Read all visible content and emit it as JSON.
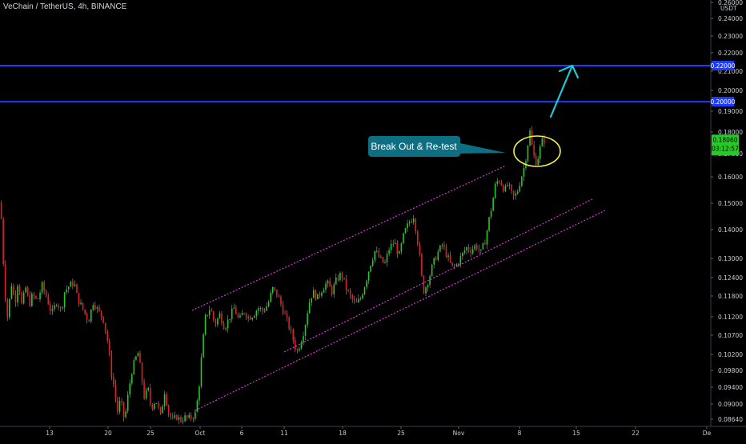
{
  "header": {
    "symbol_title": "VeChain / TetherUS, 4h, BINANCE"
  },
  "colors": {
    "background": "#000000",
    "bull": "#26c926",
    "bear": "#e02020",
    "wick": "#9aa0a8",
    "level_line": "#1e3cff",
    "channel": "#d33ad3",
    "arrow": "#1ec8d6",
    "ellipse": "#f3f04a",
    "callout": "#0f6f82",
    "price_badge": "#26c926"
  },
  "chart_data": {
    "type": "candlestick",
    "symbol": "VeChain / TetherUS",
    "timeframe": "4h",
    "exchange": "BINANCE",
    "quote_unit": "USDT",
    "ylim": [
      0.0845,
      0.262
    ],
    "scale": "log",
    "y_ticks": [
      "0.26000",
      "0.24000",
      "0.23000",
      "0.22000",
      "0.21000",
      "0.20000",
      "0.19000",
      "0.18000",
      "0.17000",
      "0.16000",
      "0.15000",
      "0.14000",
      "0.13000",
      "0.12400",
      "0.11800",
      "0.11200",
      "0.10700",
      "0.10200",
      "0.09800",
      "0.09400",
      "0.09000",
      "0.08640"
    ],
    "x_ticks": [
      "13",
      "20",
      "25",
      "Oct",
      "6",
      "11",
      "18",
      "25",
      "Nov",
      "8",
      "15",
      "22",
      "De"
    ],
    "horizontal_levels": [
      0.2,
      0.22
    ],
    "current_price": "0.18060",
    "countdown": "03:12:57",
    "annotations": [
      {
        "type": "callout",
        "text": "Break Out & Re-test"
      }
    ],
    "price_path": [
      [
        0,
        0.153
      ],
      [
        4,
        0.128
      ],
      [
        8,
        0.112
      ],
      [
        11,
        0.118
      ],
      [
        14,
        0.124
      ],
      [
        18,
        0.117
      ],
      [
        22,
        0.125
      ],
      [
        27,
        0.116
      ],
      [
        31,
        0.123
      ],
      [
        36,
        0.117
      ],
      [
        40,
        0.12
      ],
      [
        46,
        0.118
      ],
      [
        52,
        0.123
      ],
      [
        58,
        0.119
      ],
      [
        64,
        0.114
      ],
      [
        70,
        0.118
      ],
      [
        76,
        0.115
      ],
      [
        80,
        0.121
      ],
      [
        86,
        0.123
      ],
      [
        92,
        0.124
      ],
      [
        96,
        0.119
      ],
      [
        100,
        0.117
      ],
      [
        106,
        0.114
      ],
      [
        110,
        0.112
      ],
      [
        116,
        0.118
      ],
      [
        122,
        0.115
      ],
      [
        128,
        0.113
      ],
      [
        134,
        0.106
      ],
      [
        138,
        0.098
      ],
      [
        142,
        0.094
      ],
      [
        146,
        0.088
      ],
      [
        150,
        0.091
      ],
      [
        155,
        0.086
      ],
      [
        160,
        0.093
      ],
      [
        164,
        0.098
      ],
      [
        168,
        0.101
      ],
      [
        172,
        0.103
      ],
      [
        176,
        0.097
      ],
      [
        180,
        0.091
      ],
      [
        184,
        0.094
      ],
      [
        188,
        0.089
      ],
      [
        194,
        0.091
      ],
      [
        200,
        0.087
      ],
      [
        205,
        0.093
      ],
      [
        210,
        0.088
      ],
      [
        215,
        0.086
      ],
      [
        220,
        0.087
      ],
      [
        225,
        0.0862
      ],
      [
        230,
        0.0868
      ],
      [
        235,
        0.0865
      ],
      [
        240,
        0.087
      ],
      [
        244,
        0.0878
      ],
      [
        248,
        0.094
      ],
      [
        252,
        0.104
      ],
      [
        256,
        0.113
      ],
      [
        262,
        0.116
      ],
      [
        268,
        0.111
      ],
      [
        274,
        0.114
      ],
      [
        280,
        0.11
      ],
      [
        286,
        0.113
      ],
      [
        292,
        0.116
      ],
      [
        298,
        0.112
      ],
      [
        304,
        0.115
      ],
      [
        310,
        0.113
      ],
      [
        316,
        0.114
      ],
      [
        322,
        0.116
      ],
      [
        328,
        0.115
      ],
      [
        334,
        0.117
      ],
      [
        340,
        0.122
      ],
      [
        346,
        0.12
      ],
      [
        352,
        0.116
      ],
      [
        358,
        0.112
      ],
      [
        364,
        0.108
      ],
      [
        370,
        0.103
      ],
      [
        375,
        0.106
      ],
      [
        380,
        0.11
      ],
      [
        385,
        0.117
      ],
      [
        390,
        0.121
      ],
      [
        396,
        0.119
      ],
      [
        402,
        0.122
      ],
      [
        408,
        0.124
      ],
      [
        414,
        0.121
      ],
      [
        420,
        0.125
      ],
      [
        426,
        0.127
      ],
      [
        432,
        0.122
      ],
      [
        438,
        0.119
      ],
      [
        444,
        0.117
      ],
      [
        450,
        0.119
      ],
      [
        456,
        0.124
      ],
      [
        462,
        0.13
      ],
      [
        468,
        0.135
      ],
      [
        474,
        0.132
      ],
      [
        480,
        0.13
      ],
      [
        486,
        0.136
      ],
      [
        492,
        0.138
      ],
      [
        498,
        0.133
      ],
      [
        504,
        0.141
      ],
      [
        510,
        0.145
      ],
      [
        516,
        0.148
      ],
      [
        520,
        0.141
      ],
      [
        524,
        0.132
      ],
      [
        528,
        0.121
      ],
      [
        532,
        0.123
      ],
      [
        536,
        0.126
      ],
      [
        540,
        0.13
      ],
      [
        546,
        0.134
      ],
      [
        552,
        0.137
      ],
      [
        558,
        0.133
      ],
      [
        564,
        0.129
      ],
      [
        570,
        0.13
      ],
      [
        576,
        0.133
      ],
      [
        582,
        0.136
      ],
      [
        588,
        0.135
      ],
      [
        594,
        0.137
      ],
      [
        600,
        0.134
      ],
      [
        606,
        0.139
      ],
      [
        610,
        0.146
      ],
      [
        614,
        0.152
      ],
      [
        618,
        0.16
      ],
      [
        622,
        0.163
      ],
      [
        626,
        0.161
      ],
      [
        630,
        0.158
      ],
      [
        634,
        0.161
      ],
      [
        638,
        0.157
      ],
      [
        642,
        0.155
      ],
      [
        646,
        0.158
      ],
      [
        650,
        0.163
      ],
      [
        654,
        0.168
      ],
      [
        658,
        0.176
      ],
      [
        661,
        0.186
      ],
      [
        664,
        0.178
      ],
      [
        668,
        0.17
      ],
      [
        672,
        0.173
      ],
      [
        676,
        0.18
      ],
      [
        680,
        0.1806
      ]
    ]
  }
}
